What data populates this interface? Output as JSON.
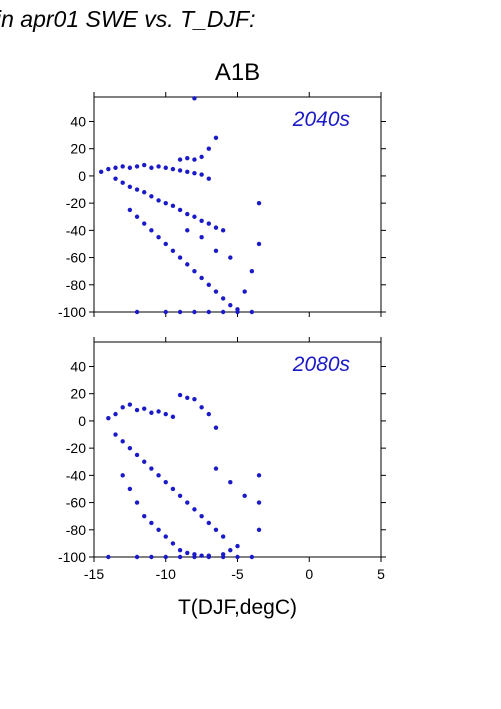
{
  "page_title": "in apr01 SWE vs. T_DJF:",
  "chart_data": [
    {
      "type": "scatter",
      "title": "A1B",
      "annotation": "2040s",
      "xlabel": "",
      "ylabel": "",
      "xlim": [
        -15,
        5
      ],
      "ylim": [
        -100,
        58
      ],
      "x_ticks": [
        -15,
        -10,
        -5,
        0,
        5
      ],
      "y_ticks": [
        40,
        20,
        0,
        -20,
        -40,
        -60,
        -80,
        -100
      ],
      "x_tick_labels_shown": false,
      "color": "#1a1ac8",
      "points": [
        [
          -14.5,
          3
        ],
        [
          -14.0,
          5
        ],
        [
          -13.5,
          6
        ],
        [
          -13.0,
          7
        ],
        [
          -12.5,
          6
        ],
        [
          -12.0,
          7
        ],
        [
          -11.5,
          8
        ],
        [
          -11.0,
          6
        ],
        [
          -10.5,
          7
        ],
        [
          -10.0,
          6
        ],
        [
          -9.5,
          5
        ],
        [
          -9.0,
          4
        ],
        [
          -8.5,
          3
        ],
        [
          -8.0,
          2
        ],
        [
          -7.5,
          1
        ],
        [
          -7.0,
          -2
        ],
        [
          -13.5,
          -2
        ],
        [
          -13.0,
          -5
        ],
        [
          -12.5,
          -8
        ],
        [
          -12.0,
          -10
        ],
        [
          -11.5,
          -12
        ],
        [
          -11.0,
          -15
        ],
        [
          -10.5,
          -18
        ],
        [
          -10.0,
          -20
        ],
        [
          -9.5,
          -22
        ],
        [
          -9.0,
          -25
        ],
        [
          -8.5,
          -28
        ],
        [
          -8.0,
          -30
        ],
        [
          -7.5,
          -33
        ],
        [
          -7.0,
          -35
        ],
        [
          -6.5,
          -38
        ],
        [
          -6.0,
          -40
        ],
        [
          -12.5,
          -25
        ],
        [
          -12.0,
          -30
        ],
        [
          -11.5,
          -35
        ],
        [
          -11.0,
          -40
        ],
        [
          -10.5,
          -45
        ],
        [
          -10.0,
          -50
        ],
        [
          -9.5,
          -55
        ],
        [
          -9.0,
          -60
        ],
        [
          -8.5,
          -65
        ],
        [
          -8.0,
          -70
        ],
        [
          -7.5,
          -75
        ],
        [
          -7.0,
          -80
        ],
        [
          -6.5,
          -85
        ],
        [
          -6.0,
          -90
        ],
        [
          -5.5,
          -95
        ],
        [
          -5.0,
          -98
        ],
        [
          -9.0,
          12
        ],
        [
          -8.5,
          13
        ],
        [
          -8.0,
          12
        ],
        [
          -7.5,
          14
        ],
        [
          -7.0,
          20
        ],
        [
          -6.5,
          28
        ],
        [
          -8.0,
          57
        ],
        [
          -12.0,
          -100
        ],
        [
          -10.0,
          -100
        ],
        [
          -9.0,
          -100
        ],
        [
          -8.0,
          -100
        ],
        [
          -7.0,
          -100
        ],
        [
          -6.0,
          -100
        ],
        [
          -5.0,
          -100
        ],
        [
          -4.0,
          -100
        ],
        [
          -3.5,
          -20
        ],
        [
          -3.5,
          -50
        ],
        [
          -4.0,
          -70
        ],
        [
          -4.5,
          -85
        ],
        [
          -5.5,
          -60
        ],
        [
          -6.5,
          -55
        ],
        [
          -7.5,
          -45
        ],
        [
          -8.5,
          -40
        ]
      ]
    },
    {
      "type": "scatter",
      "title": "",
      "annotation": "2080s",
      "xlabel": "T(DJF,degC)",
      "ylabel": "",
      "xlim": [
        -15,
        5
      ],
      "ylim": [
        -100,
        58
      ],
      "x_ticks": [
        -15,
        -10,
        -5,
        0,
        5
      ],
      "y_ticks": [
        40,
        20,
        0,
        -20,
        -40,
        -60,
        -80,
        -100
      ],
      "x_tick_labels_shown": true,
      "color": "#1a1ac8",
      "points": [
        [
          -14.0,
          2
        ],
        [
          -13.5,
          5
        ],
        [
          -13.0,
          10
        ],
        [
          -12.5,
          12
        ],
        [
          -12.0,
          8
        ],
        [
          -11.5,
          9
        ],
        [
          -11.0,
          6
        ],
        [
          -10.5,
          7
        ],
        [
          -10.0,
          5
        ],
        [
          -9.5,
          3
        ],
        [
          -9.0,
          19
        ],
        [
          -8.5,
          17
        ],
        [
          -8.0,
          16
        ],
        [
          -7.5,
          10
        ],
        [
          -7.0,
          5
        ],
        [
          -6.5,
          -5
        ],
        [
          -13.5,
          -10
        ],
        [
          -13.0,
          -15
        ],
        [
          -12.5,
          -20
        ],
        [
          -12.0,
          -25
        ],
        [
          -11.5,
          -30
        ],
        [
          -11.0,
          -35
        ],
        [
          -10.5,
          -40
        ],
        [
          -10.0,
          -45
        ],
        [
          -9.5,
          -50
        ],
        [
          -9.0,
          -55
        ],
        [
          -8.5,
          -60
        ],
        [
          -8.0,
          -65
        ],
        [
          -7.5,
          -70
        ],
        [
          -7.0,
          -75
        ],
        [
          -6.5,
          -80
        ],
        [
          -6.0,
          -85
        ],
        [
          -13.0,
          -40
        ],
        [
          -12.5,
          -50
        ],
        [
          -12.0,
          -60
        ],
        [
          -11.5,
          -70
        ],
        [
          -11.0,
          -75
        ],
        [
          -10.5,
          -80
        ],
        [
          -10.0,
          -85
        ],
        [
          -9.5,
          -90
        ],
        [
          -9.0,
          -95
        ],
        [
          -8.5,
          -97
        ],
        [
          -8.0,
          -98
        ],
        [
          -7.5,
          -99
        ],
        [
          -7.0,
          -99
        ],
        [
          -6.0,
          -98
        ],
        [
          -5.5,
          -95
        ],
        [
          -5.0,
          -92
        ],
        [
          -14.0,
          -100
        ],
        [
          -12.0,
          -100
        ],
        [
          -11.0,
          -100
        ],
        [
          -10.0,
          -100
        ],
        [
          -9.0,
          -100
        ],
        [
          -8.0,
          -100
        ],
        [
          -7.0,
          -100
        ],
        [
          -6.0,
          -100
        ],
        [
          -5.0,
          -100
        ],
        [
          -4.0,
          -100
        ],
        [
          -3.5,
          -40
        ],
        [
          -3.5,
          -60
        ],
        [
          -3.5,
          -80
        ],
        [
          -4.5,
          -55
        ],
        [
          -5.5,
          -45
        ],
        [
          -6.5,
          -35
        ]
      ]
    }
  ]
}
